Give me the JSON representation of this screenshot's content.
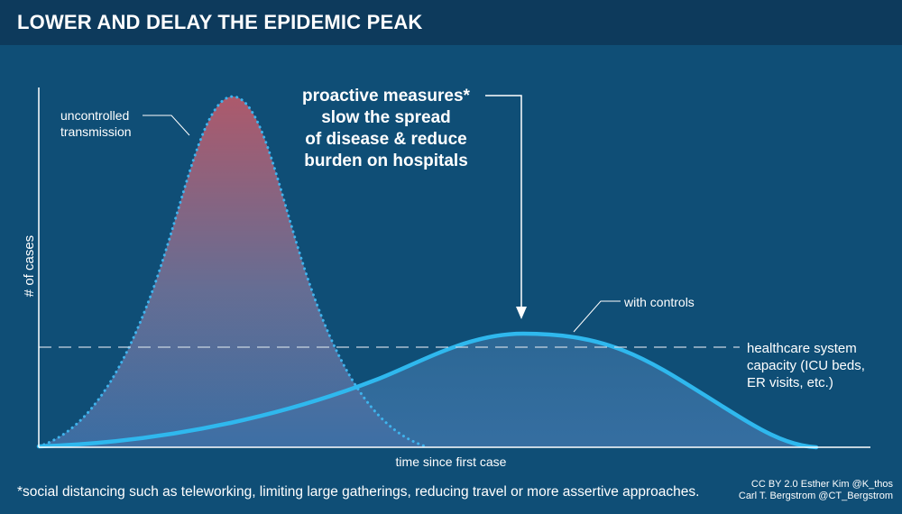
{
  "title": "LOWER AND DELAY THE EPIDEMIC PEAK",
  "y_axis_label": "# of cases",
  "x_axis_label": "time since first case",
  "curves": {
    "uncontrolled_label_line1": "uncontrolled",
    "uncontrolled_label_line2": "transmission",
    "controlled_label": "with controls"
  },
  "capacity": {
    "line1": "healthcare system",
    "line2": "capacity (ICU beds,",
    "line3": "ER visits, etc.)"
  },
  "callout": {
    "line1": "proactive measures*",
    "line2": "slow the spread",
    "line3": "of disease & reduce",
    "line4": "burden on hospitals"
  },
  "footnote": "*social distancing such as teleworking, limiting large gatherings, reducing travel or more assertive approaches.",
  "credits": {
    "line1": "CC BY 2.0  Esther Kim  @K_thos",
    "line2": "Carl T. Bergstrom  @CT_Bergstrom"
  },
  "colors": {
    "background": "#0f4e76",
    "title_bar": "#0d3a5c",
    "uncontrolled_top": "#b55a6b",
    "uncontrolled_bottom": "#3d6fa5",
    "controlled_line": "#2fb8ee",
    "dotted_line": "#3fb4ee"
  }
}
